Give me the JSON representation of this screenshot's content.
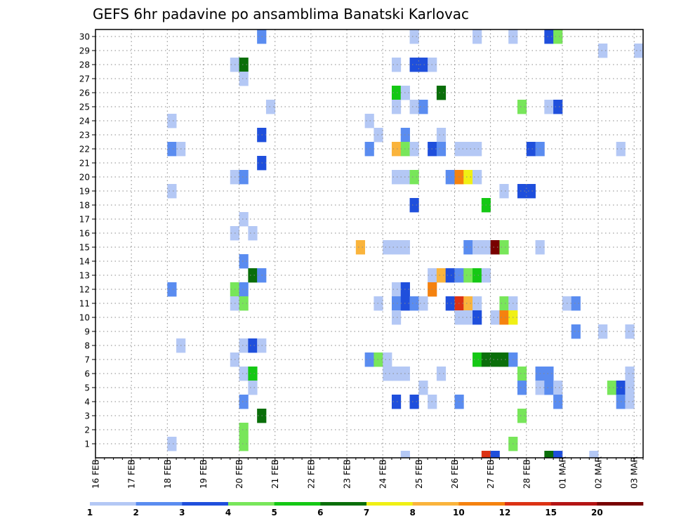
{
  "chart_data": {
    "type": "heatmap",
    "title": "GEFS 6hr padavine po ansamblima Banatski Karlovac",
    "xlabel": "",
    "ylabel": "",
    "x_tick_labels": [
      "16 FEB",
      "17 FEB",
      "18 FEB",
      "19 FEB",
      "20 FEB",
      "21 FEB",
      "22 FEB",
      "23 FEB",
      "24 FEB",
      "25 FEB",
      "26 FEB",
      "27 FEB",
      "28 FEB",
      "01 MAR",
      "02 MAR",
      "03 MAR"
    ],
    "y_tick_labels": [
      "1",
      "2",
      "3",
      "4",
      "5",
      "6",
      "7",
      "8",
      "9",
      "10",
      "11",
      "12",
      "13",
      "14",
      "15",
      "16",
      "17",
      "18",
      "19",
      "20",
      "21",
      "22",
      "23",
      "24",
      "25",
      "26",
      "27",
      "28",
      "29",
      "30"
    ],
    "xlim_steps": [
      0,
      61
    ],
    "steps_per_day": 4,
    "ylim": [
      0,
      30
    ],
    "grid": true,
    "colorbar": {
      "levels": [
        "1",
        "2",
        "3",
        "4",
        "5",
        "6",
        "7",
        "8",
        "10",
        "12",
        "15",
        "20",
        ""
      ],
      "colors": [
        "#b4c8f5",
        "#5a8cf0",
        "#1f4fdc",
        "#78e65a",
        "#14c814",
        "#0a6e0a",
        "#f0f014",
        "#fab43c",
        "#f5820f",
        "#dc3214",
        "#b41414",
        "#780000"
      ]
    },
    "cells": [
      [
        18,
        30,
        1
      ],
      [
        35,
        30,
        0
      ],
      [
        42,
        30,
        0
      ],
      [
        46,
        30,
        0
      ],
      [
        50,
        30,
        2
      ],
      [
        51,
        30,
        3
      ],
      [
        56,
        29,
        0
      ],
      [
        60,
        29,
        0
      ],
      [
        15,
        28,
        0
      ],
      [
        16,
        28,
        5
      ],
      [
        33,
        28,
        0
      ],
      [
        35,
        28,
        2
      ],
      [
        36,
        28,
        2
      ],
      [
        37,
        28,
        0
      ],
      [
        16,
        27,
        0
      ],
      [
        33,
        26,
        4
      ],
      [
        34,
        26,
        0
      ],
      [
        38,
        26,
        5
      ],
      [
        19,
        25,
        0
      ],
      [
        33,
        25,
        0
      ],
      [
        35,
        25,
        0
      ],
      [
        36,
        25,
        1
      ],
      [
        47,
        25,
        3
      ],
      [
        50,
        25,
        0
      ],
      [
        51,
        25,
        2
      ],
      [
        8,
        24,
        0
      ],
      [
        30,
        24,
        0
      ],
      [
        18,
        23,
        2
      ],
      [
        31,
        23,
        0
      ],
      [
        34,
        23,
        1
      ],
      [
        38,
        23,
        0
      ],
      [
        8,
        22,
        1
      ],
      [
        9,
        22,
        0
      ],
      [
        30,
        22,
        1
      ],
      [
        33,
        22,
        7
      ],
      [
        34,
        22,
        3
      ],
      [
        35,
        22,
        0
      ],
      [
        37,
        22,
        2
      ],
      [
        38,
        22,
        1
      ],
      [
        40,
        22,
        0
      ],
      [
        41,
        22,
        0
      ],
      [
        42,
        22,
        0
      ],
      [
        48,
        22,
        2
      ],
      [
        49,
        22,
        1
      ],
      [
        58,
        22,
        0
      ],
      [
        18,
        21,
        2
      ],
      [
        15,
        20,
        0
      ],
      [
        16,
        20,
        1
      ],
      [
        33,
        20,
        0
      ],
      [
        34,
        20,
        0
      ],
      [
        35,
        20,
        3
      ],
      [
        39,
        20,
        1
      ],
      [
        40,
        20,
        8
      ],
      [
        41,
        20,
        6
      ],
      [
        42,
        20,
        0
      ],
      [
        8,
        19,
        0
      ],
      [
        45,
        19,
        0
      ],
      [
        47,
        19,
        2
      ],
      [
        48,
        19,
        2
      ],
      [
        35,
        18,
        2
      ],
      [
        43,
        18,
        4
      ],
      [
        16,
        17,
        0
      ],
      [
        17,
        16,
        0
      ],
      [
        15,
        16,
        0
      ],
      [
        29,
        15,
        7
      ],
      [
        32,
        15,
        0
      ],
      [
        33,
        15,
        0
      ],
      [
        34,
        15,
        0
      ],
      [
        41,
        15,
        1
      ],
      [
        42,
        15,
        0
      ],
      [
        49,
        15,
        0
      ],
      [
        43,
        15,
        0
      ],
      [
        44,
        15,
        11
      ],
      [
        45,
        15,
        3
      ],
      [
        16,
        14,
        1
      ],
      [
        17,
        13,
        5
      ],
      [
        18,
        13,
        1
      ],
      [
        37,
        13,
        0
      ],
      [
        38,
        13,
        7
      ],
      [
        39,
        13,
        2
      ],
      [
        40,
        13,
        1
      ],
      [
        41,
        13,
        3
      ],
      [
        42,
        13,
        4
      ],
      [
        43,
        13,
        0
      ],
      [
        8,
        12,
        1
      ],
      [
        15,
        12,
        3
      ],
      [
        16,
        12,
        1
      ],
      [
        33,
        12,
        0
      ],
      [
        34,
        12,
        2
      ],
      [
        37,
        12,
        8
      ],
      [
        15,
        11,
        0
      ],
      [
        16,
        11,
        3
      ],
      [
        31,
        11,
        0
      ],
      [
        33,
        11,
        1
      ],
      [
        34,
        11,
        2
      ],
      [
        35,
        11,
        1
      ],
      [
        36,
        11,
        0
      ],
      [
        39,
        11,
        2
      ],
      [
        40,
        11,
        9
      ],
      [
        41,
        11,
        7
      ],
      [
        42,
        11,
        0
      ],
      [
        45,
        11,
        3
      ],
      [
        46,
        11,
        0
      ],
      [
        52,
        11,
        0
      ],
      [
        53,
        11,
        1
      ],
      [
        33,
        10,
        0
      ],
      [
        40,
        10,
        0
      ],
      [
        41,
        10,
        0
      ],
      [
        42,
        10,
        2
      ],
      [
        44,
        10,
        0
      ],
      [
        45,
        10,
        8
      ],
      [
        46,
        10,
        6
      ],
      [
        53,
        9,
        1
      ],
      [
        56,
        9,
        0
      ],
      [
        59,
        9,
        0
      ],
      [
        9,
        8,
        0
      ],
      [
        16,
        8,
        0
      ],
      [
        17,
        8,
        2
      ],
      [
        18,
        8,
        0
      ],
      [
        15,
        7,
        0
      ],
      [
        30,
        7,
        1
      ],
      [
        31,
        7,
        3
      ],
      [
        32,
        7,
        0
      ],
      [
        42,
        7,
        4
      ],
      [
        43,
        7,
        5
      ],
      [
        44,
        7,
        5
      ],
      [
        45,
        7,
        5
      ],
      [
        46,
        7,
        1
      ],
      [
        16,
        6,
        0
      ],
      [
        17,
        6,
        4
      ],
      [
        32,
        6,
        0
      ],
      [
        33,
        6,
        0
      ],
      [
        34,
        6,
        0
      ],
      [
        38,
        6,
        0
      ],
      [
        47,
        6,
        3
      ],
      [
        49,
        6,
        1
      ],
      [
        50,
        6,
        1
      ],
      [
        59,
        6,
        0
      ],
      [
        17,
        5,
        0
      ],
      [
        36,
        5,
        0
      ],
      [
        47,
        5,
        1
      ],
      [
        49,
        5,
        0
      ],
      [
        50,
        5,
        1
      ],
      [
        51,
        5,
        0
      ],
      [
        57,
        5,
        3
      ],
      [
        58,
        5,
        2
      ],
      [
        59,
        5,
        0
      ],
      [
        16,
        4,
        1
      ],
      [
        33,
        4,
        2
      ],
      [
        35,
        4,
        2
      ],
      [
        37,
        4,
        0
      ],
      [
        40,
        4,
        1
      ],
      [
        51,
        4,
        1
      ],
      [
        58,
        4,
        1
      ],
      [
        59,
        4,
        0
      ],
      [
        18,
        3,
        5
      ],
      [
        47,
        3,
        3
      ],
      [
        16,
        2,
        3
      ],
      [
        8,
        1,
        0
      ],
      [
        16,
        1,
        3
      ],
      [
        46,
        1,
        3
      ],
      [
        34,
        0,
        0
      ],
      [
        43,
        0,
        9
      ],
      [
        44,
        0,
        2
      ],
      [
        50,
        0,
        5
      ],
      [
        51,
        0,
        2
      ],
      [
        55,
        0,
        0
      ]
    ]
  }
}
